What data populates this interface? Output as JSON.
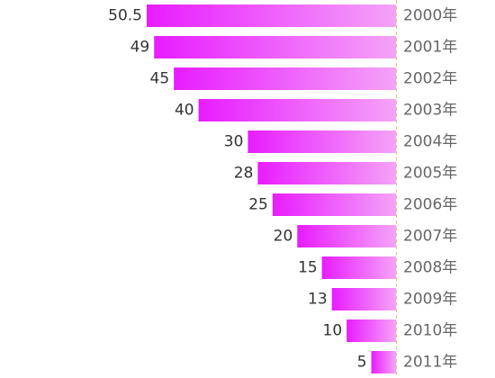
{
  "chart_data": {
    "type": "bar",
    "orientation": "horizontal",
    "bar_direction": "right-to-left",
    "title": "",
    "xlabel": "",
    "ylabel": "",
    "categories": [
      "2000年",
      "2001年",
      "2002年",
      "2003年",
      "2004年",
      "2005年",
      "2006年",
      "2007年",
      "2008年",
      "2009年",
      "2010年",
      "2011年"
    ],
    "series": [
      {
        "values": [
          50.5,
          49,
          45,
          40,
          30,
          28,
          25,
          20,
          15,
          13,
          10,
          5
        ],
        "value_labels": [
          "50.5",
          "49",
          "45",
          "40",
          "30",
          "28",
          "25",
          "20",
          "15",
          "13",
          "10",
          "5"
        ]
      }
    ],
    "xlim": [
      0,
      50.5
    ],
    "axis_line": "dashed",
    "grid": false,
    "legend": "none",
    "colors": {
      "bar_start": "#e81cff",
      "bar_end": "#f5a3f8",
      "axis": "#e6c36b"
    }
  }
}
